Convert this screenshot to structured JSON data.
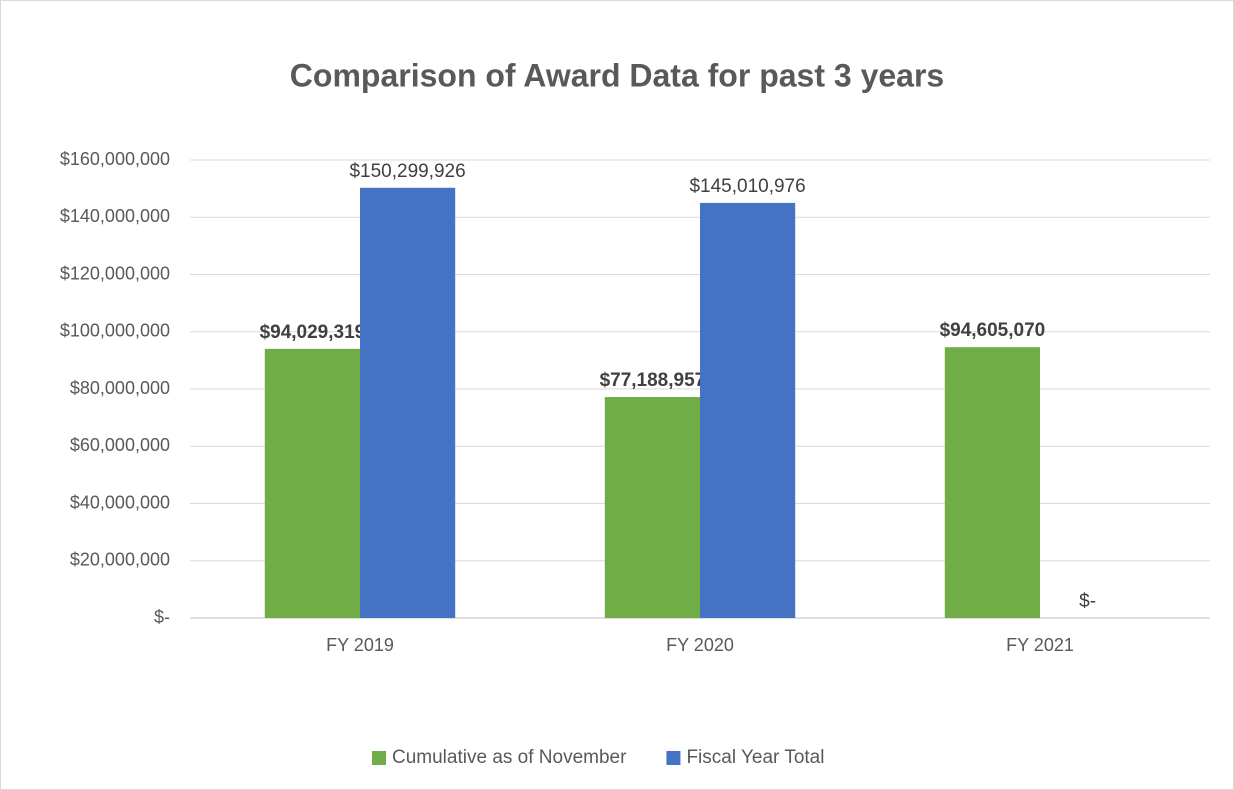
{
  "chart_data": {
    "type": "bar",
    "title": "Comparison of Award Data for past 3 years",
    "categories": [
      "FY 2019",
      "FY 2020",
      "FY 2021"
    ],
    "series": [
      {
        "name": "Cumulative as of November",
        "color": "#70ad47",
        "values": [
          94029319,
          77188957,
          94605070
        ],
        "value_labels": [
          "$94,029,319",
          "$77,188,957",
          "$94,605,070"
        ]
      },
      {
        "name": "Fiscal Year Total",
        "color": "#4472c4",
        "values": [
          150299926,
          145010976,
          0
        ],
        "value_labels": [
          "$150,299,926",
          "$145,010,976",
          "$-"
        ]
      }
    ],
    "ylim": [
      0,
      160000000
    ],
    "yticks": [
      {
        "value": 0,
        "label": "$-"
      },
      {
        "value": 20000000,
        "label": "$20,000,000"
      },
      {
        "value": 40000000,
        "label": "$40,000,000"
      },
      {
        "value": 60000000,
        "label": "$60,000,000"
      },
      {
        "value": 80000000,
        "label": "$80,000,000"
      },
      {
        "value": 100000000,
        "label": "$100,000,000"
      },
      {
        "value": 120000000,
        "label": "$120,000,000"
      },
      {
        "value": 140000000,
        "label": "$140,000,000"
      },
      {
        "value": 160000000,
        "label": "$160,000,000"
      }
    ],
    "grid": true,
    "legend": "bottom"
  }
}
